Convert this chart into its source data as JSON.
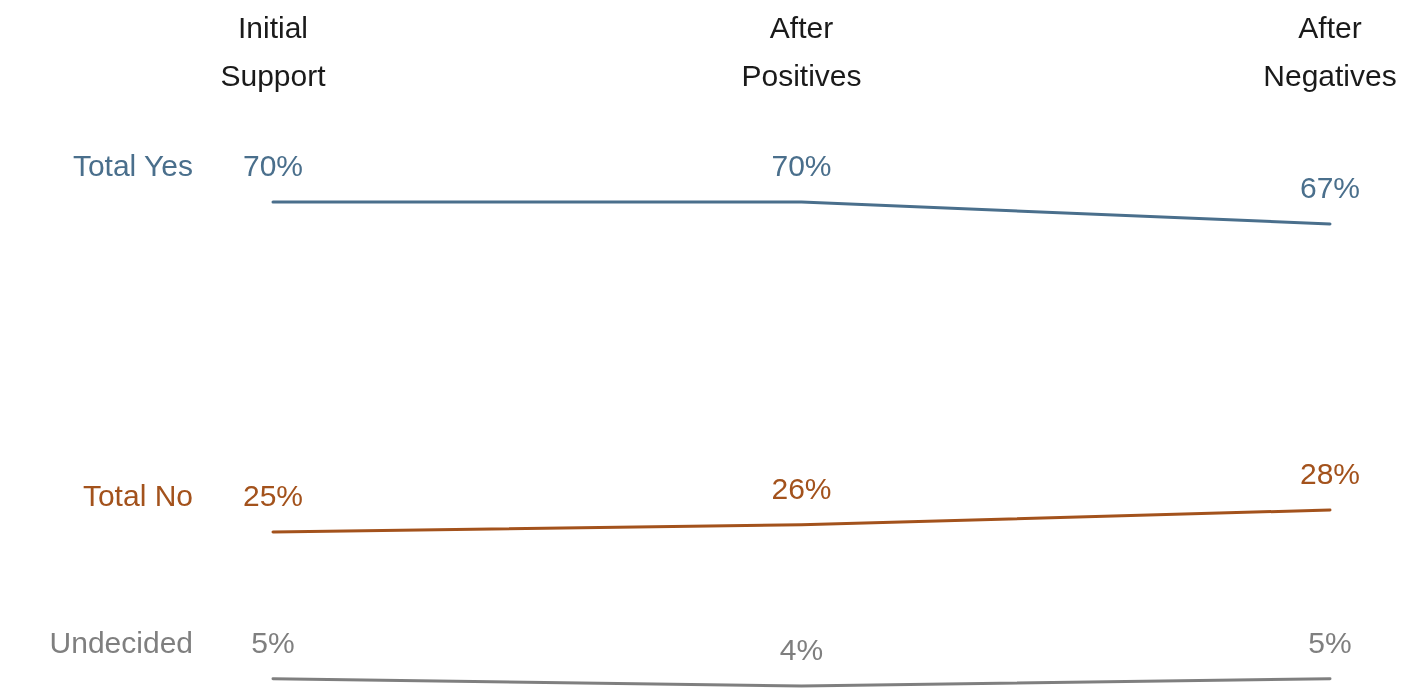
{
  "chart_data": {
    "type": "line",
    "categories": [
      "Initial Support",
      "After Positives",
      "After Negatives"
    ],
    "series": [
      {
        "name": "Total Yes",
        "color": "#4a6f8c",
        "values": [
          70,
          70,
          67
        ],
        "value_labels": [
          "70%",
          "70%",
          "67%"
        ]
      },
      {
        "name": "Total No",
        "color": "#a3521c",
        "values": [
          25,
          26,
          28
        ],
        "value_labels": [
          "25%",
          "26%",
          "28%"
        ]
      },
      {
        "name": "Undecided",
        "color": "#7f7f7f",
        "values": [
          5,
          4,
          5
        ],
        "value_labels": [
          "5%",
          "4%",
          "5%"
        ]
      }
    ],
    "tick_labels": "x",
    "legend": false,
    "marker": "none",
    "line_style": "solid"
  }
}
